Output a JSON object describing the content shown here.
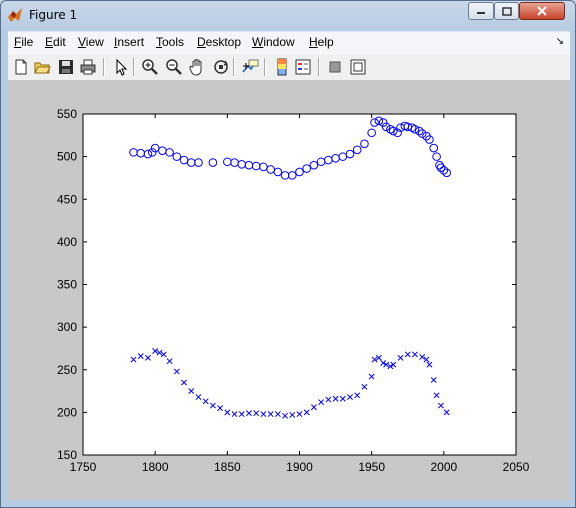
{
  "window": {
    "title": "Figure 1"
  },
  "menu": {
    "items": [
      {
        "key": "file",
        "label": "File",
        "u": "F",
        "rest": "ile"
      },
      {
        "key": "edit",
        "label": "Edit",
        "u": "E",
        "rest": "dit"
      },
      {
        "key": "view",
        "label": "View",
        "u": "V",
        "rest": "iew"
      },
      {
        "key": "insert",
        "label": "Insert",
        "u": "I",
        "rest": "nsert"
      },
      {
        "key": "tools",
        "label": "Tools",
        "u": "T",
        "rest": "ools"
      },
      {
        "key": "desktop",
        "label": "Desktop",
        "u": "D",
        "rest": "esktop"
      },
      {
        "key": "window",
        "label": "Window",
        "u": "W",
        "rest": "indow"
      },
      {
        "key": "help",
        "label": "Help",
        "u": "H",
        "rest": "elp"
      }
    ]
  },
  "toolbar": {
    "icons": [
      "new-figure-icon",
      "open-file-icon",
      "save-icon",
      "print-icon",
      "select-arrow-icon",
      "zoom-in-icon",
      "zoom-out-icon",
      "pan-hand-icon",
      "rotate-3d-icon",
      "data-cursor-icon",
      "colorbar-icon",
      "legend-icon",
      "hide-plot-tools-icon",
      "show-plot-tools-icon"
    ]
  },
  "chart_data": {
    "type": "scatter",
    "title": "",
    "xlabel": "",
    "ylabel": "",
    "xlim": [
      1750,
      2050
    ],
    "ylim": [
      150,
      550
    ],
    "xticks": [
      1750,
      1800,
      1850,
      1900,
      1950,
      2000,
      2050
    ],
    "yticks": [
      150,
      200,
      250,
      300,
      350,
      400,
      450,
      500,
      550
    ],
    "colors": {
      "series": "#0000ff",
      "axes_bg": "#ffffff",
      "figure_bg": "#c8c8c8"
    },
    "series": [
      {
        "marker": "o",
        "x": [
          1785,
          1790,
          1795,
          1798,
          1800,
          1805,
          1810,
          1815,
          1820,
          1825,
          1830,
          1840,
          1850,
          1855,
          1860,
          1865,
          1870,
          1875,
          1880,
          1885,
          1890,
          1895,
          1900,
          1905,
          1910,
          1915,
          1920,
          1925,
          1930,
          1935,
          1940,
          1945,
          1950,
          1952,
          1955,
          1958,
          1960,
          1963,
          1965,
          1968,
          1970,
          1973,
          1975,
          1978,
          1980,
          1983,
          1985,
          1988,
          1990,
          1993,
          1995,
          1997,
          1998,
          2000,
          2002
        ],
        "y": [
          505,
          504,
          503,
          505,
          510,
          507,
          505,
          500,
          496,
          493,
          493,
          493,
          494,
          493,
          491,
          490,
          489,
          488,
          485,
          482,
          478,
          478,
          482,
          486,
          490,
          494,
          496,
          498,
          500,
          503,
          508,
          515,
          528,
          540,
          542,
          540,
          535,
          532,
          530,
          528,
          534,
          536,
          535,
          534,
          532,
          530,
          527,
          524,
          520,
          510,
          500,
          490,
          487,
          484,
          481
        ]
      },
      {
        "marker": "x",
        "x": [
          1785,
          1790,
          1795,
          1800,
          1803,
          1806,
          1810,
          1815,
          1820,
          1825,
          1830,
          1835,
          1840,
          1845,
          1850,
          1855,
          1860,
          1865,
          1870,
          1875,
          1880,
          1885,
          1890,
          1895,
          1900,
          1905,
          1910,
          1915,
          1920,
          1925,
          1930,
          1935,
          1940,
          1945,
          1950,
          1952,
          1955,
          1958,
          1960,
          1963,
          1965,
          1970,
          1975,
          1980,
          1985,
          1988,
          1990,
          1993,
          1995,
          1998,
          2002
        ],
        "y": [
          262,
          266,
          264,
          272,
          270,
          268,
          260,
          248,
          235,
          225,
          218,
          213,
          208,
          205,
          200,
          198,
          198,
          199,
          199,
          198,
          198,
          198,
          196,
          197,
          198,
          200,
          206,
          212,
          215,
          216,
          216,
          218,
          220,
          230,
          242,
          262,
          264,
          258,
          256,
          254,
          256,
          264,
          268,
          268,
          265,
          262,
          256,
          238,
          220,
          208,
          200
        ]
      }
    ]
  }
}
